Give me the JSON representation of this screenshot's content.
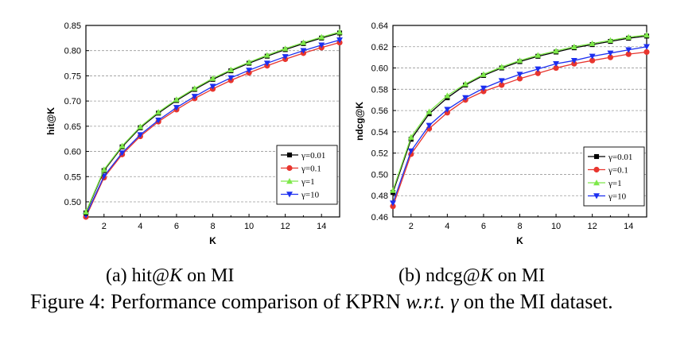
{
  "chart_data": [
    {
      "type": "line",
      "xlabel": "K",
      "ylabel": "hit@K",
      "xlim": [
        1,
        15
      ],
      "ylim": [
        0.47,
        0.85
      ],
      "xticks": [
        2,
        4,
        6,
        8,
        10,
        12,
        14
      ],
      "yticks": [
        0.5,
        0.55,
        0.6,
        0.65,
        0.7,
        0.75,
        0.8,
        0.85
      ],
      "ytick_labels": [
        "0.50",
        "0.55",
        "0.60",
        "0.65",
        "0.70",
        "0.75",
        "0.80",
        "0.85"
      ],
      "grid": "horizontal dashed",
      "legend_position": "bottom-right",
      "x": [
        1,
        2,
        3,
        4,
        5,
        6,
        7,
        8,
        9,
        10,
        11,
        12,
        13,
        14,
        15
      ],
      "series": [
        {
          "name": "γ=0.01",
          "color": "#000000",
          "marker": "square",
          "values": [
            0.478,
            0.562,
            0.609,
            0.647,
            0.676,
            0.701,
            0.723,
            0.743,
            0.76,
            0.775,
            0.789,
            0.802,
            0.814,
            0.825,
            0.835
          ]
        },
        {
          "name": "γ=0.1",
          "color": "#e8352e",
          "marker": "circle",
          "values": [
            0.47,
            0.548,
            0.594,
            0.63,
            0.659,
            0.683,
            0.705,
            0.724,
            0.741,
            0.756,
            0.77,
            0.783,
            0.795,
            0.806,
            0.816
          ]
        },
        {
          "name": "γ=1",
          "color": "#7ee84a",
          "marker": "triangle-up",
          "values": [
            0.48,
            0.564,
            0.611,
            0.649,
            0.678,
            0.703,
            0.725,
            0.745,
            0.762,
            0.777,
            0.791,
            0.804,
            0.816,
            0.827,
            0.837
          ]
        },
        {
          "name": "γ=10",
          "color": "#1c2ff0",
          "marker": "triangle-down",
          "values": [
            0.473,
            0.551,
            0.597,
            0.633,
            0.662,
            0.687,
            0.709,
            0.729,
            0.746,
            0.761,
            0.775,
            0.788,
            0.8,
            0.811,
            0.821
          ]
        }
      ]
    },
    {
      "type": "line",
      "xlabel": "K",
      "ylabel": "ndcg@K",
      "xlim": [
        1,
        15
      ],
      "ylim": [
        0.46,
        0.64
      ],
      "xticks": [
        2,
        4,
        6,
        8,
        10,
        12,
        14
      ],
      "yticks": [
        0.46,
        0.48,
        0.5,
        0.52,
        0.54,
        0.56,
        0.58,
        0.6,
        0.62,
        0.64
      ],
      "ytick_labels": [
        "0.46",
        "0.48",
        "0.50",
        "0.52",
        "0.54",
        "0.56",
        "0.58",
        "0.60",
        "0.62",
        "0.64"
      ],
      "grid": "horizontal dashed",
      "legend_position": "bottom-right",
      "x": [
        1,
        2,
        3,
        4,
        5,
        6,
        7,
        8,
        9,
        10,
        11,
        12,
        13,
        14,
        15
      ],
      "series": [
        {
          "name": "γ=0.01",
          "color": "#000000",
          "marker": "square",
          "values": [
            0.483,
            0.533,
            0.557,
            0.572,
            0.584,
            0.593,
            0.6,
            0.606,
            0.611,
            0.615,
            0.619,
            0.622,
            0.625,
            0.628,
            0.63
          ]
        },
        {
          "name": "γ=0.1",
          "color": "#e8352e",
          "marker": "circle",
          "values": [
            0.47,
            0.519,
            0.543,
            0.558,
            0.57,
            0.578,
            0.584,
            0.59,
            0.595,
            0.6,
            0.604,
            0.607,
            0.61,
            0.613,
            0.615
          ]
        },
        {
          "name": "γ=1",
          "color": "#7ee84a",
          "marker": "triangle-up",
          "values": [
            0.485,
            0.535,
            0.559,
            0.574,
            0.585,
            0.594,
            0.601,
            0.607,
            0.612,
            0.616,
            0.62,
            0.623,
            0.626,
            0.629,
            0.631
          ]
        },
        {
          "name": "γ=10",
          "color": "#1c2ff0",
          "marker": "triangle-down",
          "values": [
            0.473,
            0.522,
            0.546,
            0.561,
            0.572,
            0.581,
            0.588,
            0.594,
            0.599,
            0.604,
            0.607,
            0.611,
            0.614,
            0.617,
            0.62
          ]
        }
      ]
    }
  ],
  "subcaptions": {
    "a_prefix": "(a) hit@",
    "a_var": "K",
    "a_suffix": " on MI",
    "b_prefix": "(b) ndcg@",
    "b_var": "K",
    "b_suffix": " on MI"
  },
  "caption": {
    "prefix": "Figure 4: Performance comparison of KPRN ",
    "wrt": "w.r.t.",
    "gamma": " γ",
    "suffix": " on the MI dataset."
  }
}
